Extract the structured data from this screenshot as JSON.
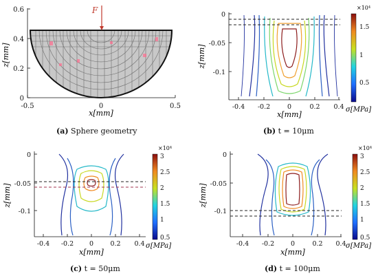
{
  "figure": {
    "panels": [
      {
        "id": "a",
        "caption_tag": "(a)",
        "caption_text": "Sphere geometry",
        "xlabel": "x[mm]",
        "ylabel": "z[mm]",
        "force_label": "F",
        "x_ticks": [
          "-0.5",
          "0",
          "0.5"
        ],
        "y_ticks": [
          "0",
          "0.2",
          "0.4",
          "0.6"
        ]
      },
      {
        "id": "b",
        "caption_tag": "(b)",
        "caption_text": "t = 10μm",
        "xlabel": "x[mm]",
        "ylabel": "z[mm]",
        "x_ticks": [
          "-0.4",
          "-0.2",
          "0",
          "0.2",
          "0.4"
        ],
        "y_ticks": [
          "0",
          "-0.05",
          "-0.1"
        ],
        "colorbar_label": "σ[MPa]",
        "colorbar_exponent": "×10⁴",
        "colorbar_ticks": [
          "1.5",
          "1",
          "0.5"
        ]
      },
      {
        "id": "c",
        "caption_tag": "(c)",
        "caption_text": "t = 50μm",
        "xlabel": "x[mm]",
        "ylabel": "z[mm]",
        "x_ticks": [
          "-0.4",
          "-0.2",
          "0",
          "0.2",
          "0.4"
        ],
        "y_ticks": [
          "0",
          "-0.05",
          "-0.1"
        ],
        "colorbar_label": "σ[MPa]",
        "colorbar_exponent": "×10⁴",
        "colorbar_ticks": [
          "3",
          "2.5",
          "2",
          "1.5",
          "1",
          "0.5"
        ]
      },
      {
        "id": "d",
        "caption_tag": "(d)",
        "caption_text": "t = 100μm",
        "xlabel": "x[mm]",
        "ylabel": "z[mm]",
        "x_ticks": [
          "-0.4",
          "-0.2",
          "0",
          "0.2",
          "0.4"
        ],
        "y_ticks": [
          "0",
          "-0.05",
          "-0.1"
        ],
        "colorbar_label": "σ[MPa]",
        "colorbar_exponent": "×10⁴",
        "colorbar_ticks": [
          "3",
          "2.5",
          "2",
          "1.5",
          "1",
          "0.5"
        ]
      }
    ],
    "colors": {
      "axis": "#111111",
      "force": "#c0392b",
      "sphere_fill": "#c8c8c8",
      "mesh": "#6e6e6e",
      "dashed": "#222222",
      "dashed_red": "#a0334d",
      "contour_outer": "#1f2f9e",
      "contour_mid": "#22b8c8",
      "contour_inner": "#c8d820",
      "contour_peak": "#8b1a1a"
    }
  }
}
